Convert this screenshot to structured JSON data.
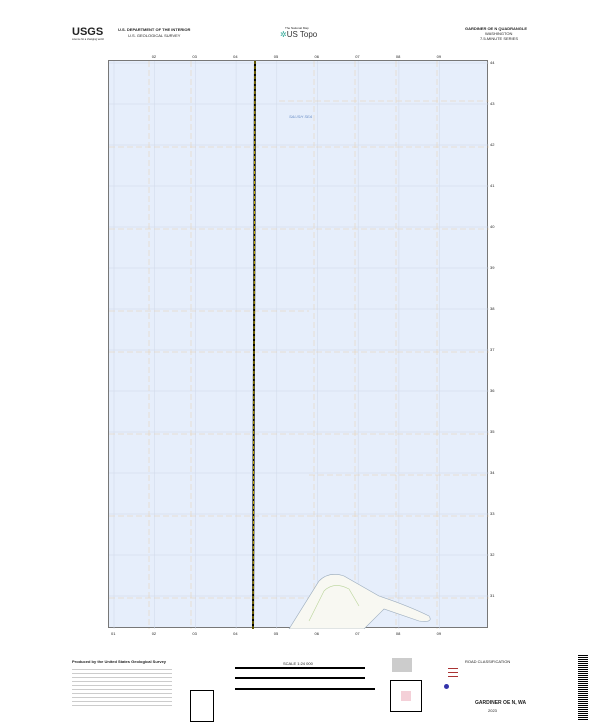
{
  "header": {
    "agency_logo": "USGS",
    "agency_tagline": "science for a changing world",
    "department": "U.S. DEPARTMENT OF THE INTERIOR",
    "survey": "U.S. GEOLOGICAL SURVEY",
    "center_logo_caption": "The National Map",
    "center_logo": "US Topo",
    "quad_name": "GARDINER OE N QUADRANGLE",
    "state": "WASHINGTON",
    "series": "7.5-MINUTE SERIES"
  },
  "map": {
    "water_label": "SALISH SEA",
    "top_ticks": [
      "02",
      "03",
      "04",
      "05",
      "06",
      "07",
      "08",
      "09"
    ],
    "bottom_ticks": [
      "01",
      "02",
      "03",
      "04",
      "05",
      "06",
      "07",
      "08",
      "09"
    ],
    "right_ticks": [
      "44",
      "43",
      "42",
      "41",
      "40",
      "39",
      "38",
      "37",
      "36",
      "35",
      "34",
      "33",
      "32",
      "31"
    ],
    "colors": {
      "water": "#e6eefb",
      "road": "#f2d600",
      "grid": "#e8c79a"
    }
  },
  "footer": {
    "producer": "Produced by the United States Geological Survey",
    "scale": "SCALE 1:24 000",
    "quad_name": "GARDINER OE N, WA",
    "year": "2023",
    "legend_title": "ROAD CLASSIFICATION"
  }
}
